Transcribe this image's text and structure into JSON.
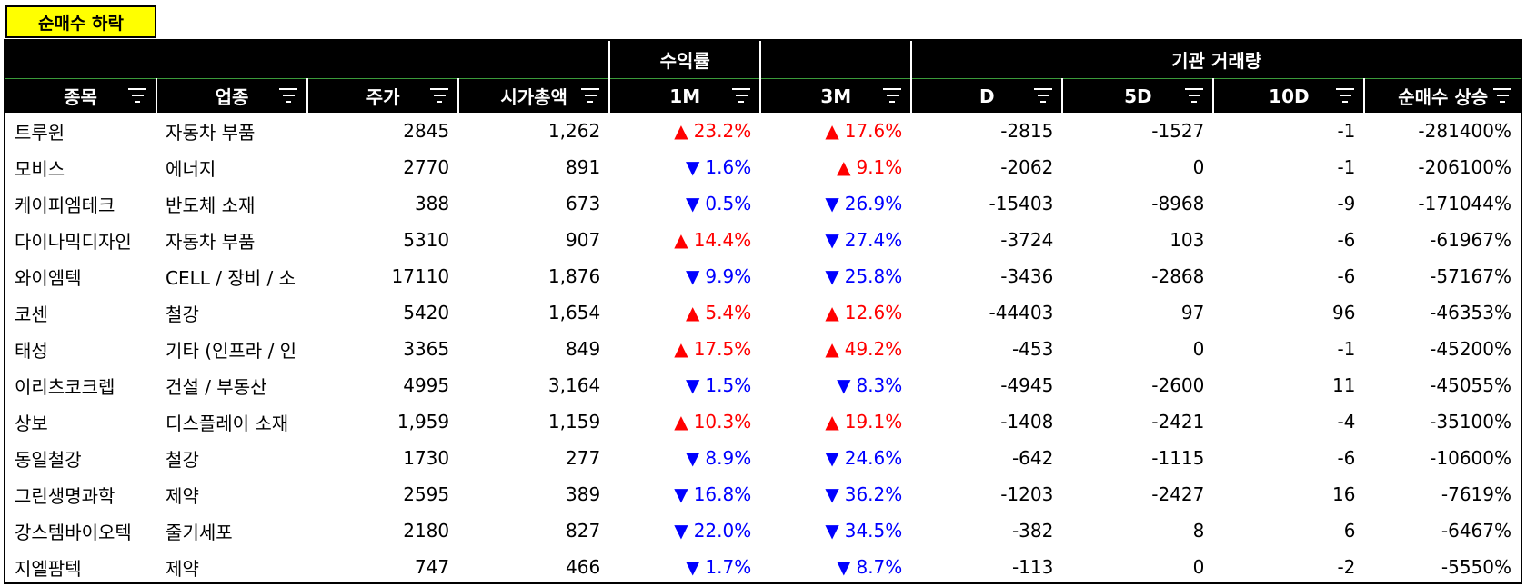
{
  "badge": "순매수 하락",
  "header_groups": {
    "returns": "수익률",
    "volume": "기관 거래량"
  },
  "columns": [
    "종목",
    "업종",
    "주가",
    "시가총액",
    "1M",
    "3M",
    "D",
    "5D",
    "10D",
    "순매수 상승"
  ],
  "colors": {
    "up": "#ff0000",
    "down": "#0000ff",
    "badge": "#ffff00",
    "header_bg": "#000000"
  },
  "rows": [
    {
      "name": "트루윈",
      "sector": "자동차 부품",
      "price": "2845",
      "mcap": "1,262",
      "m1_dir": "up",
      "m1": "23.2%",
      "m3_dir": "up",
      "m3": "17.6%",
      "d": "-2815",
      "d5": "-1527",
      "d10": "-1",
      "net": "-281400%"
    },
    {
      "name": "모비스",
      "sector": "에너지",
      "price": "2770",
      "mcap": "891",
      "m1_dir": "down",
      "m1": "1.6%",
      "m3_dir": "up",
      "m3": "9.1%",
      "d": "-2062",
      "d5": "0",
      "d10": "-1",
      "net": "-206100%"
    },
    {
      "name": "케이피엠테크",
      "sector": "반도체 소재",
      "price": "388",
      "mcap": "673",
      "m1_dir": "down",
      "m1": "0.5%",
      "m3_dir": "down",
      "m3": "26.9%",
      "d": "-15403",
      "d5": "-8968",
      "d10": "-9",
      "net": "-171044%"
    },
    {
      "name": "다이나믹디자인",
      "sector": "자동차 부품",
      "price": "5310",
      "mcap": "907",
      "m1_dir": "up",
      "m1": "14.4%",
      "m3_dir": "down",
      "m3": "27.4%",
      "d": "-3724",
      "d5": "103",
      "d10": "-6",
      "net": "-61967%"
    },
    {
      "name": "와이엠텍",
      "sector": "CELL / 장비 / 소",
      "price": "17110",
      "mcap": "1,876",
      "m1_dir": "down",
      "m1": "9.9%",
      "m3_dir": "down",
      "m3": "25.8%",
      "d": "-3436",
      "d5": "-2868",
      "d10": "-6",
      "net": "-57167%"
    },
    {
      "name": "코센",
      "sector": "철강",
      "price": "5420",
      "mcap": "1,654",
      "m1_dir": "up",
      "m1": "5.4%",
      "m3_dir": "up",
      "m3": "12.6%",
      "d": "-44403",
      "d5": "97",
      "d10": "96",
      "net": "-46353%"
    },
    {
      "name": "태성",
      "sector": "기타 (인프라 / 인",
      "price": "3365",
      "mcap": "849",
      "m1_dir": "up",
      "m1": "17.5%",
      "m3_dir": "up",
      "m3": "49.2%",
      "d": "-453",
      "d5": "0",
      "d10": "-1",
      "net": "-45200%"
    },
    {
      "name": "이리츠코크렙",
      "sector": "건설 / 부동산",
      "price": "4995",
      "mcap": "3,164",
      "m1_dir": "down",
      "m1": "1.5%",
      "m3_dir": "down",
      "m3": "8.3%",
      "d": "-4945",
      "d5": "-2600",
      "d10": "11",
      "net": "-45055%"
    },
    {
      "name": "상보",
      "sector": "디스플레이 소재",
      "price": "1,959",
      "mcap": "1,159",
      "m1_dir": "up",
      "m1": "10.3%",
      "m3_dir": "up",
      "m3": "19.1%",
      "d": "-1408",
      "d5": "-2421",
      "d10": "-4",
      "net": "-35100%"
    },
    {
      "name": "동일철강",
      "sector": "철강",
      "price": "1730",
      "mcap": "277",
      "m1_dir": "down",
      "m1": "8.9%",
      "m3_dir": "down",
      "m3": "24.6%",
      "d": "-642",
      "d5": "-1115",
      "d10": "-6",
      "net": "-10600%"
    },
    {
      "name": "그린생명과학",
      "sector": "제약",
      "price": "2595",
      "mcap": "389",
      "m1_dir": "down",
      "m1": "16.8%",
      "m3_dir": "down",
      "m3": "36.2%",
      "d": "-1203",
      "d5": "-2427",
      "d10": "16",
      "net": "-7619%"
    },
    {
      "name": "강스템바이오텍",
      "sector": "줄기세포",
      "price": "2180",
      "mcap": "827",
      "m1_dir": "down",
      "m1": "22.0%",
      "m3_dir": "down",
      "m3": "34.5%",
      "d": "-382",
      "d5": "8",
      "d10": "6",
      "net": "-6467%"
    },
    {
      "name": "지엘팜텍",
      "sector": "제약",
      "price": "747",
      "mcap": "466",
      "m1_dir": "down",
      "m1": "1.7%",
      "m3_dir": "down",
      "m3": "8.7%",
      "d": "-113",
      "d5": "0",
      "d10": "-2",
      "net": "-5550%"
    }
  ]
}
